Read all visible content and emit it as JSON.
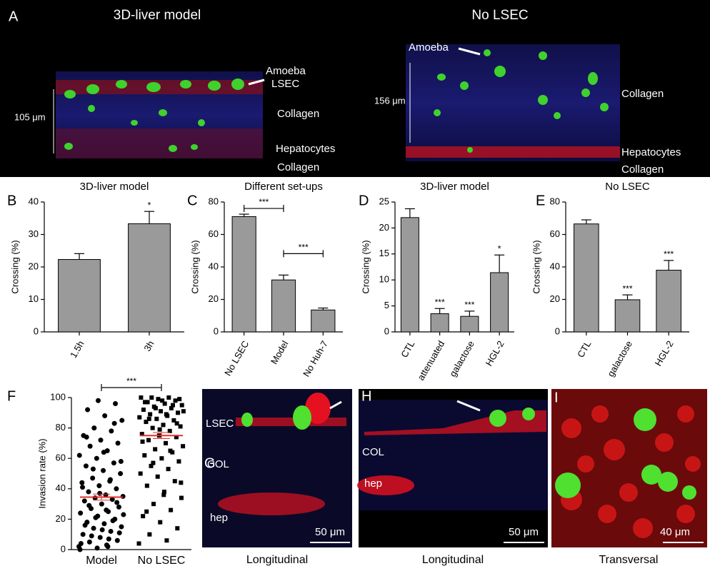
{
  "panel_labels": [
    "A",
    "B",
    "C",
    "D",
    "E",
    "F",
    "G",
    "H",
    "I"
  ],
  "figure_a": {
    "left": {
      "title": "3D-liver model",
      "annotations": [
        "Amoeba",
        "LSEC",
        "Collagen",
        "Hepatocytes",
        "Collagen"
      ],
      "scale": "105 μm"
    },
    "right": {
      "title": "No LSEC",
      "annotations": [
        "Amoeba",
        "Collagen",
        "Hepatocytes",
        "Collagen"
      ],
      "scale": "156 μm"
    }
  },
  "images": [
    {
      "annotations": [
        "LSEC",
        "COL",
        "hep"
      ],
      "scale": "50 μm",
      "caption": "Longitudinal"
    },
    {
      "annotations": [
        "COL",
        "hep"
      ],
      "scale": "50 μm",
      "caption": "Longitudinal"
    },
    {
      "annotations": [],
      "scale": "40 μm",
      "caption": "Transversal"
    }
  ],
  "chart_data": [
    {
      "type": "bar",
      "title": "3D-liver model",
      "y_label": "Crossing (%)",
      "color": "#9a9a9a",
      "categories": [
        "1.5h",
        "3h"
      ],
      "values": [
        22.3,
        33.3
      ],
      "errors": [
        1.8,
        3.8
      ],
      "significance": [
        null,
        "*"
      ],
      "ylim": [
        0,
        40
      ],
      "yticks": [
        0,
        10,
        20,
        30,
        40
      ]
    },
    {
      "type": "bar",
      "title": "Different set-ups",
      "y_label": "Crossing (%)",
      "color": "#9a9a9a",
      "categories": [
        "No LSEC",
        "Model",
        "No Huh-7"
      ],
      "values": [
        71,
        32,
        13.5
      ],
      "errors": [
        1.5,
        3,
        1.2
      ],
      "brackets": [
        {
          "between": [
            "No LSEC",
            "Model"
          ],
          "label": "***"
        },
        {
          "between": [
            "Model",
            "No Huh-7"
          ],
          "label": "***"
        }
      ],
      "ylim": [
        0,
        80
      ],
      "yticks": [
        0,
        20,
        40,
        60,
        80
      ]
    },
    {
      "type": "bar",
      "title": "3D-liver model",
      "y_label": "Crossing (%)",
      "color": "#9a9a9a",
      "categories": [
        "CTL",
        "attenuated",
        "galactose",
        "HGL-2"
      ],
      "values": [
        22,
        3.5,
        3,
        11.4
      ],
      "errors": [
        1.7,
        1,
        1,
        3.4
      ],
      "significance": [
        null,
        "***",
        "***",
        "*"
      ],
      "ylim": [
        0,
        25
      ],
      "yticks": [
        0,
        5,
        10,
        15,
        20,
        25
      ]
    },
    {
      "type": "bar",
      "title": "No LSEC",
      "y_label": "Crossing (%)",
      "color": "#9a9a9a",
      "categories": [
        "CTL",
        "galactose",
        "HGL-2"
      ],
      "values": [
        66.5,
        19.8,
        38
      ],
      "errors": [
        2.5,
        3,
        6
      ],
      "significance": [
        null,
        "***",
        "***"
      ],
      "ylim": [
        0,
        80
      ],
      "yticks": [
        0,
        20,
        40,
        60,
        80
      ]
    },
    {
      "type": "dotplot",
      "y_label": "Invasion rate (%)",
      "color": "#000000",
      "mean_color": "#e0302a",
      "categories": [
        "Model",
        "No LSEC"
      ],
      "markers": [
        "circle",
        "square"
      ],
      "values": [
        [
          2,
          3,
          5,
          6,
          8,
          10,
          12,
          14,
          15,
          17,
          18,
          20,
          22,
          24,
          25,
          27,
          28,
          30,
          32,
          33,
          34,
          35,
          36,
          38,
          40,
          42,
          44,
          45,
          47,
          50,
          52,
          55,
          57,
          60,
          62,
          65,
          68,
          70,
          72,
          75,
          78,
          80,
          85,
          88,
          92,
          96,
          98,
          4,
          7,
          9,
          11,
          13,
          16,
          19,
          21,
          23,
          26,
          29,
          31,
          37,
          41,
          46,
          53,
          58,
          64,
          74,
          83,
          1,
          0,
          2
        ],
        [
          4,
          6,
          10,
          14,
          18,
          22,
          26,
          30,
          34,
          38,
          42,
          45,
          48,
          50,
          53,
          55,
          58,
          60,
          62,
          64,
          66,
          68,
          70,
          72,
          74,
          75,
          76,
          78,
          80,
          81,
          82,
          84,
          85,
          86,
          87,
          88,
          89,
          90,
          91,
          92,
          93,
          94,
          95,
          96,
          97,
          98,
          99,
          100,
          100,
          100,
          99,
          98,
          97,
          95,
          93,
          91,
          89,
          86,
          83,
          79,
          71,
          65,
          57,
          44,
          36,
          25
        ]
      ],
      "means": [
        34.5,
        75
      ],
      "sem": [
        2,
        2
      ],
      "brackets": [
        {
          "between": [
            "Model",
            "No LSEC"
          ],
          "label": "***"
        }
      ],
      "ylim": [
        0,
        100
      ],
      "yticks": [
        0,
        20,
        40,
        60,
        80,
        100
      ]
    }
  ]
}
